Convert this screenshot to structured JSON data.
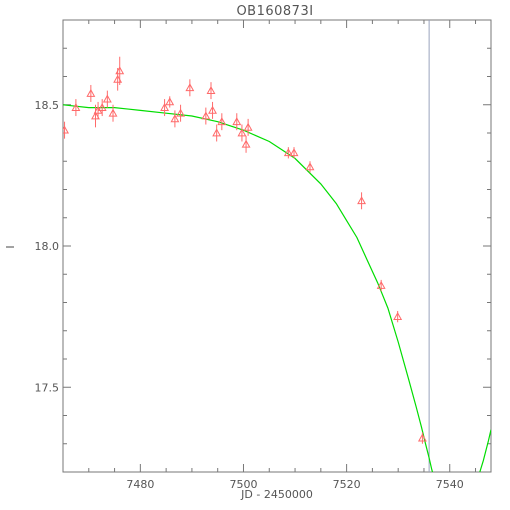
{
  "chart_data": {
    "type": "scatter",
    "title": "OB160873I",
    "xlabel": "JD - 2450000",
    "ylabel": "I",
    "xlim": [
      7465,
      7548
    ],
    "ylim": [
      18.8,
      17.2
    ],
    "y_inverted": true,
    "x_ticks": [
      {
        "value": 7480,
        "label": "7480"
      },
      {
        "value": 7500,
        "label": "7500"
      },
      {
        "value": 7520,
        "label": "7520"
      },
      {
        "value": 7540,
        "label": "7540"
      }
    ],
    "y_ticks": [
      {
        "value": 17.5,
        "label": "17.5"
      },
      {
        "value": 18.0,
        "label": "18.0"
      },
      {
        "value": 18.5,
        "label": "18.5"
      }
    ],
    "grid": false,
    "colors": {
      "points": "#ff6a6a",
      "model": "#00dd00",
      "vline": "#9aa2bd",
      "frame": "#777777"
    },
    "series": [
      {
        "type": "scatter-errorbar",
        "points": [
          {
            "x": 7465.3,
            "y": 18.41,
            "err": 0.03
          },
          {
            "x": 7467.5,
            "y": 18.49,
            "err": 0.03
          },
          {
            "x": 7470.4,
            "y": 18.54,
            "err": 0.03
          },
          {
            "x": 7471.3,
            "y": 18.46,
            "err": 0.04
          },
          {
            "x": 7471.8,
            "y": 18.48,
            "err": 0.03
          },
          {
            "x": 7472.6,
            "y": 18.49,
            "err": 0.03
          },
          {
            "x": 7473.6,
            "y": 18.52,
            "err": 0.03
          },
          {
            "x": 7474.7,
            "y": 18.47,
            "err": 0.03
          },
          {
            "x": 7475.6,
            "y": 18.59,
            "err": 0.04
          },
          {
            "x": 7476.0,
            "y": 18.62,
            "err": 0.05
          },
          {
            "x": 7484.7,
            "y": 18.49,
            "err": 0.03
          },
          {
            "x": 7485.7,
            "y": 18.51,
            "err": 0.02
          },
          {
            "x": 7486.7,
            "y": 18.45,
            "err": 0.03
          },
          {
            "x": 7487.8,
            "y": 18.47,
            "err": 0.03
          },
          {
            "x": 7489.6,
            "y": 18.56,
            "err": 0.03
          },
          {
            "x": 7492.7,
            "y": 18.46,
            "err": 0.03
          },
          {
            "x": 7493.7,
            "y": 18.55,
            "err": 0.03
          },
          {
            "x": 7494.0,
            "y": 18.48,
            "err": 0.03
          },
          {
            "x": 7494.8,
            "y": 18.4,
            "err": 0.03
          },
          {
            "x": 7495.8,
            "y": 18.44,
            "err": 0.03
          },
          {
            "x": 7498.7,
            "y": 18.44,
            "err": 0.03
          },
          {
            "x": 7499.7,
            "y": 18.4,
            "err": 0.03
          },
          {
            "x": 7500.5,
            "y": 18.36,
            "err": 0.03
          },
          {
            "x": 7500.9,
            "y": 18.42,
            "err": 0.03
          },
          {
            "x": 7508.7,
            "y": 18.33,
            "err": 0.02
          },
          {
            "x": 7509.8,
            "y": 18.33,
            "err": 0.02
          },
          {
            "x": 7512.9,
            "y": 18.28,
            "err": 0.02
          },
          {
            "x": 7522.9,
            "y": 18.16,
            "err": 0.03
          },
          {
            "x": 7526.7,
            "y": 17.86,
            "err": 0.02
          },
          {
            "x": 7529.9,
            "y": 17.75,
            "err": 0.02
          },
          {
            "x": 7534.7,
            "y": 17.32,
            "err": 0.02
          }
        ]
      },
      {
        "type": "model-curve",
        "points": [
          [
            7465.0,
            18.5
          ],
          [
            7470,
            18.49
          ],
          [
            7475,
            18.49
          ],
          [
            7480,
            18.48
          ],
          [
            7485,
            18.47
          ],
          [
            7490,
            18.46
          ],
          [
            7495,
            18.44
          ],
          [
            7500,
            18.41
          ],
          [
            7505,
            18.37
          ],
          [
            7510,
            18.31
          ],
          [
            7515,
            18.22
          ],
          [
            7518,
            18.15
          ],
          [
            7520,
            18.09
          ],
          [
            7522,
            18.03
          ],
          [
            7524,
            17.95
          ],
          [
            7526,
            17.87
          ],
          [
            7528,
            17.78
          ],
          [
            7530,
            17.66
          ],
          [
            7532,
            17.53
          ],
          [
            7533.5,
            17.43
          ],
          [
            7534.5,
            17.36
          ],
          [
            7535.3,
            17.3
          ],
          [
            7536.0,
            17.25
          ],
          [
            7536.5,
            17.21
          ],
          [
            7536.8,
            17.19
          ]
        ]
      },
      {
        "type": "model-curve-right",
        "points": [
          [
            7545.5,
            17.18
          ],
          [
            7546.5,
            17.24
          ],
          [
            7547.5,
            17.31
          ],
          [
            7548.0,
            17.35
          ]
        ]
      }
    ],
    "vline": {
      "x": 7536.0
    }
  }
}
